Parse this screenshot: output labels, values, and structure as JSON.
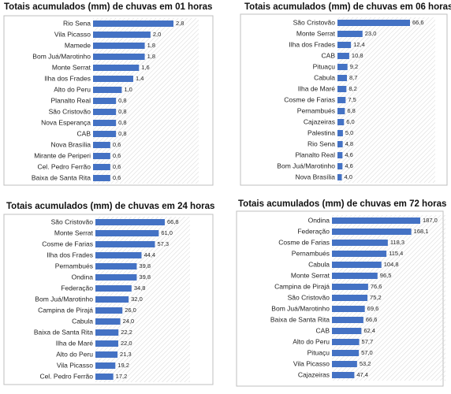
{
  "chart_data": [
    {
      "type": "bar",
      "title": "Totais acumulados (mm) de chuvas em 01 horas",
      "color": "#4472c4",
      "categories": [
        "Rio Sena",
        "Vila Picasso",
        "Mamede",
        "Bom Juá/Marotinho",
        "Monte Serrat",
        "Ilha dos Frades",
        "Alto do Peru",
        "Planalto Real",
        "São Cristovão",
        "Nova Esperança",
        "CAB",
        "Nova Brasília",
        "Mirante de Periperi",
        "Cel. Pedro Ferrão",
        "Baixa de Santa Rita"
      ],
      "values": [
        2.8,
        2.0,
        1.8,
        1.8,
        1.6,
        1.4,
        1.0,
        0.8,
        0.8,
        0.8,
        0.8,
        0.6,
        0.6,
        0.6,
        0.6
      ],
      "value_labels": [
        "2,8",
        "2,0",
        "1,8",
        "1,8",
        "1,6",
        "1,4",
        "1,0",
        "0,8",
        "0,8",
        "0,8",
        "0,8",
        "0,6",
        "0,6",
        "0,6",
        "0,6"
      ]
    },
    {
      "type": "bar",
      "title": "Totais acumulados (mm) de chuvas em 06 horas",
      "color": "#4472c4",
      "categories": [
        "São Cristovão",
        "Monte Serrat",
        "Ilha dos Frades",
        "CAB",
        "Pituaçu",
        "Cabula",
        "Ilha de Maré",
        "Cosme de Farias",
        "Pernambués",
        "Cajazeiras",
        "Palestina",
        "Rio Sena",
        "Planalto Real",
        "Bom Juá/Marotinho",
        "Nova Brasília"
      ],
      "values": [
        66.6,
        23.0,
        12.4,
        10.8,
        9.2,
        8.7,
        8.2,
        7.5,
        6.8,
        6.0,
        5.0,
        4.8,
        4.6,
        4.6,
        4.0
      ],
      "value_labels": [
        "66,6",
        "23,0",
        "12,4",
        "10,8",
        "9,2",
        "8,7",
        "8,2",
        "7,5",
        "6,8",
        "6,0",
        "5,0",
        "4,8",
        "4,6",
        "4,6",
        "4,0"
      ]
    },
    {
      "type": "bar",
      "title": "Totais acumulados (mm) de chuvas em 24 horas",
      "color": "#4472c4",
      "categories": [
        "São Cristovão",
        "Monte Serrat",
        "Cosme de Farias",
        "Ilha dos Frades",
        "Pernambués",
        "Ondina",
        "Federação",
        "Bom Juá/Marotinho",
        "Campina de Pirajá",
        "Cabula",
        "Baixa de Santa Rita",
        "Ilha de Maré",
        "Alto do Peru",
        "Vila Picasso",
        "Cel. Pedro Ferrão"
      ],
      "values": [
        66.8,
        61.0,
        57.3,
        44.4,
        39.8,
        39.8,
        34.8,
        32.0,
        26.0,
        24.0,
        22.2,
        22.0,
        21.3,
        19.2,
        17.2
      ],
      "value_labels": [
        "66,8",
        "61,0",
        "57,3",
        "44,4",
        "39,8",
        "39,8",
        "34,8",
        "32,0",
        "26,0",
        "24,0",
        "22,2",
        "22,0",
        "21,3",
        "19,2",
        "17,2"
      ]
    },
    {
      "type": "bar",
      "title": "Totais acumulados (mm) de chuvas em 72 horas",
      "color": "#4472c4",
      "categories": [
        "Ondina",
        "Federação",
        "Cosme de Farias",
        "Pernambués",
        "Cabula",
        "Monte Serrat",
        "Campina de Pirajá",
        "São Cristovão",
        "Bom Juá/Marotinho",
        "Baixa de Santa Rita",
        "CAB",
        "Alto do Peru",
        "Pituaçu",
        "Vila Picasso",
        "Cajazeiras"
      ],
      "values": [
        187.0,
        168.1,
        118.3,
        115.4,
        104.8,
        96.5,
        76.6,
        75.2,
        69.6,
        66.6,
        62.4,
        57.7,
        57.0,
        53.2,
        47.4
      ],
      "value_labels": [
        "187,0",
        "168,1",
        "118,3",
        "115,4",
        "104,8",
        "96,5",
        "76,6",
        "75,2",
        "69,6",
        "66,6",
        "62,4",
        "57,7",
        "57,0",
        "53,2",
        "47,4"
      ]
    }
  ]
}
